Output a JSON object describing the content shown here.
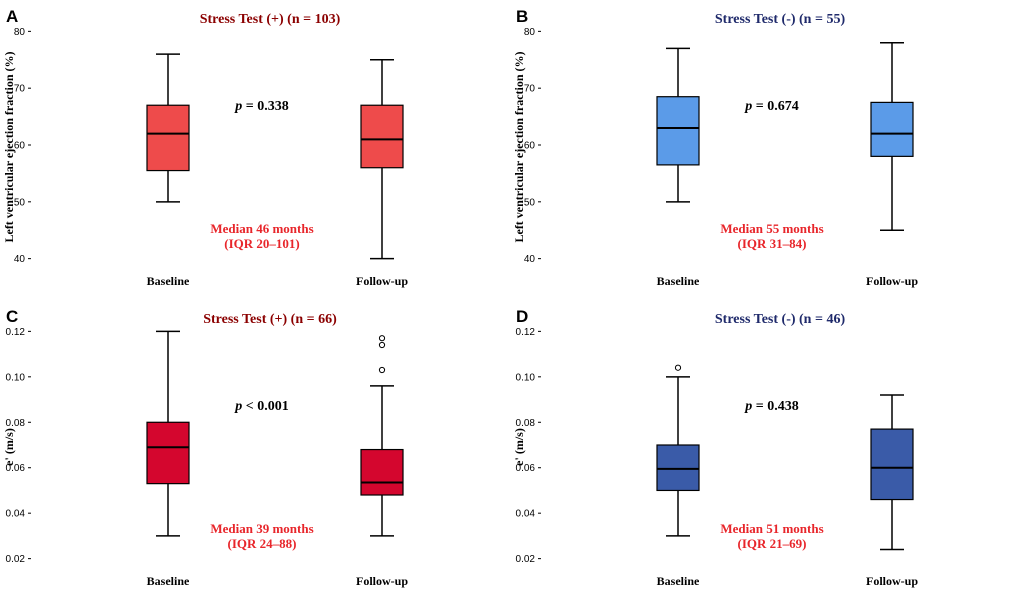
{
  "colors": {
    "title_red": "#8B0000",
    "title_blue": "#1F2A6B",
    "note_red": "#E8262B",
    "box_A": "#EE4B4B",
    "box_B": "#5B9BE8",
    "box_C": "#D4062E",
    "box_D": "#3A5BA8"
  },
  "chart_data": [
    {
      "panel_label": "A",
      "type": "boxplot",
      "title": "Stress Test (+) (n = 103)",
      "ylabel": "Left ventricular ejection fraction (%)",
      "xlabel": "",
      "ylim": [
        38,
        82
      ],
      "yticks": [
        40,
        50,
        60,
        70,
        80
      ],
      "ytick_labels": [
        "40",
        "50",
        "60",
        "70",
        "80"
      ],
      "categories": [
        "Baseline",
        "Follow-up"
      ],
      "boxes": [
        {
          "min": 50,
          "q1": 55.5,
          "median": 62,
          "q3": 67,
          "max": 76,
          "outliers": []
        },
        {
          "min": 40,
          "q1": 56,
          "median": 61,
          "q3": 67,
          "max": 75,
          "outliers": []
        }
      ],
      "p_label": "p",
      "p_text": " = 0.338",
      "annotation": [
        "Median 46 months",
        "(IQR 20–101)"
      ]
    },
    {
      "panel_label": "B",
      "type": "boxplot",
      "title": "Stress Test (-) (n = 55)",
      "ylabel": "Left ventricular ejection fraction (%)",
      "xlabel": "",
      "ylim": [
        38,
        82
      ],
      "yticks": [
        40,
        50,
        60,
        70,
        80
      ],
      "ytick_labels": [
        "40",
        "50",
        "60",
        "70",
        "80"
      ],
      "categories": [
        "Baseline",
        "Follow-up"
      ],
      "boxes": [
        {
          "min": 50,
          "q1": 56.5,
          "median": 63,
          "q3": 68.5,
          "max": 77,
          "outliers": []
        },
        {
          "min": 45,
          "q1": 58,
          "median": 62,
          "q3": 67.5,
          "max": 78,
          "outliers": []
        }
      ],
      "p_label": "p",
      "p_text": " = 0.674",
      "annotation": [
        "Median 55 months",
        "(IQR 31–84)"
      ]
    },
    {
      "panel_label": "C",
      "type": "boxplot",
      "title": "Stress Test (+) (n = 66)",
      "ylabel": "e' (m/s)",
      "xlabel": "",
      "ylim": [
        0.015,
        0.125
      ],
      "yticks": [
        0.02,
        0.04,
        0.06,
        0.08,
        0.1,
        0.12
      ],
      "ytick_labels": [
        "0.02",
        "0.04",
        "0.06",
        "0.08",
        "0.10",
        "0.12"
      ],
      "categories": [
        "Baseline",
        "Follow-up"
      ],
      "boxes": [
        {
          "min": 0.03,
          "q1": 0.053,
          "median": 0.069,
          "q3": 0.08,
          "max": 0.12,
          "outliers": []
        },
        {
          "min": 0.03,
          "q1": 0.048,
          "median": 0.0535,
          "q3": 0.068,
          "max": 0.096,
          "outliers": [
            0.103,
            0.114,
            0.117
          ]
        }
      ],
      "p_label": "p",
      "p_text": " < 0.001",
      "annotation": [
        "Median 39 months",
        "(IQR 24–88)"
      ]
    },
    {
      "panel_label": "D",
      "type": "boxplot",
      "title": "Stress Test (-) (n = 46)",
      "ylabel": "e' (m/s)",
      "xlabel": "",
      "ylim": [
        0.015,
        0.125
      ],
      "yticks": [
        0.02,
        0.04,
        0.06,
        0.08,
        0.1,
        0.12
      ],
      "ytick_labels": [
        "0.02",
        "0.04",
        "0.06",
        "0.08",
        "0.10",
        "0.12"
      ],
      "categories": [
        "Baseline",
        "Follow-up"
      ],
      "boxes": [
        {
          "min": 0.03,
          "q1": 0.05,
          "median": 0.0595,
          "q3": 0.07,
          "max": 0.1,
          "outliers": [
            0.104
          ]
        },
        {
          "min": 0.024,
          "q1": 0.046,
          "median": 0.06,
          "q3": 0.077,
          "max": 0.092,
          "outliers": []
        }
      ],
      "p_label": "p",
      "p_text": " = 0.438",
      "annotation": [
        "Median 51 months",
        "(IQR 21–69)"
      ]
    }
  ]
}
